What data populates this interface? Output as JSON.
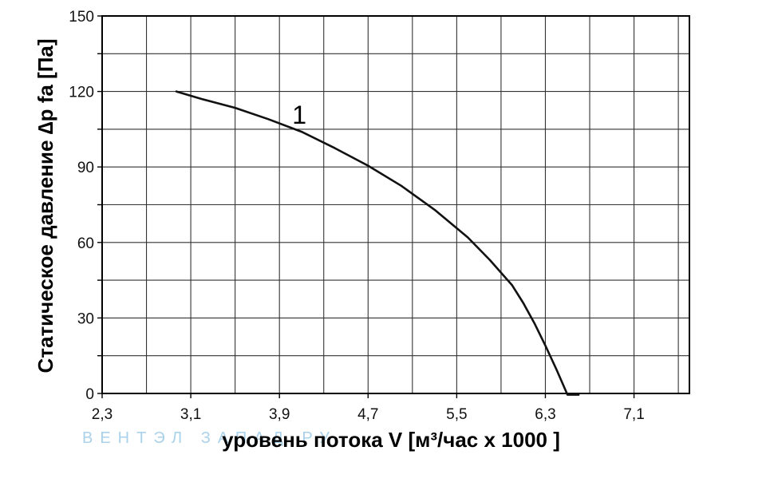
{
  "chart_data": {
    "type": "line",
    "xlabel": "уровень потока  V [м³/час x 1000 ]",
    "ylabel": "Статическое давление  ∆p fa [Па]",
    "xlim": [
      2.3,
      7.6
    ],
    "ylim": [
      0,
      150
    ],
    "x_ticks": [
      "2,3",
      "3,1",
      "3,9",
      "4,7",
      "5,5",
      "6,3",
      "7,1"
    ],
    "x_tick_values": [
      2.3,
      3.1,
      3.9,
      4.7,
      5.5,
      6.3,
      7.1
    ],
    "x_minor_values": [
      2.7,
      3.5,
      4.3,
      5.1,
      5.9,
      6.7,
      7.5
    ],
    "y_ticks": [
      "0",
      "30",
      "60",
      "90",
      "120",
      "150"
    ],
    "y_tick_values": [
      0,
      30,
      60,
      90,
      120,
      150
    ],
    "y_minor_values": [
      15,
      45,
      75,
      105,
      135
    ],
    "grid": true,
    "series": [
      {
        "name": "1",
        "x": [
          2.97,
          3.2,
          3.5,
          3.8,
          4.1,
          4.4,
          4.7,
          5.0,
          5.3,
          5.6,
          5.8,
          6.0,
          6.1,
          6.2,
          6.3,
          6.4,
          6.5,
          6.6
        ],
        "y": [
          120,
          117,
          113.5,
          109,
          104,
          97.5,
          90.5,
          82.5,
          73,
          62,
          53,
          43,
          36,
          28,
          19,
          9.5,
          -0.5,
          -0.5
        ]
      }
    ],
    "curve_label": "1",
    "curve_label_at": [
      4.08,
      111
    ],
    "watermark": "ВЕНТЭЛ ЗАПАД.РУ"
  }
}
